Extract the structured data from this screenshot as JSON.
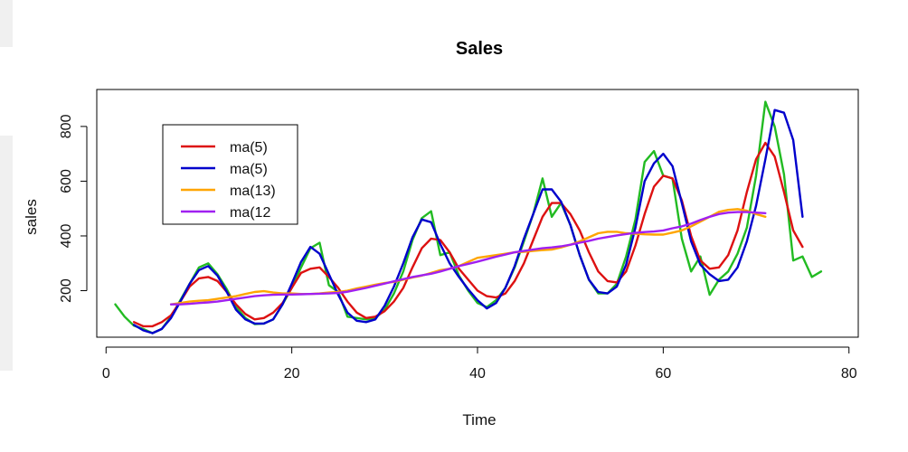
{
  "chart_data": {
    "type": "line",
    "title": "Sales",
    "xlabel": "Time",
    "ylabel": "sales",
    "xlim": [
      -1,
      81
    ],
    "ylim": [
      30,
      935
    ],
    "xticks": [
      0,
      20,
      40,
      60,
      80
    ],
    "yticks": [
      200,
      400,
      600,
      800
    ],
    "grid": false,
    "legend_position": "top-left",
    "series": [
      {
        "name": "",
        "color": "#22bb22",
        "in_legend": false,
        "x": [
          1,
          2,
          3,
          4,
          5,
          6,
          7,
          8,
          9,
          10,
          11,
          12,
          13,
          14,
          15,
          16,
          17,
          18,
          19,
          20,
          21,
          22,
          23,
          24,
          25,
          26,
          27,
          28,
          29,
          30,
          31,
          32,
          33,
          34,
          35,
          36,
          37,
          38,
          39,
          40,
          41,
          42,
          43,
          44,
          45,
          46,
          47,
          48,
          49,
          50,
          51,
          52,
          53,
          54,
          55,
          56,
          57,
          58,
          59,
          60,
          61,
          62,
          63,
          64,
          65,
          66,
          67,
          68,
          69,
          70,
          71,
          72,
          73,
          74,
          75,
          76,
          77
        ],
        "values": [
          150,
          105,
          72,
          60,
          45,
          60,
          105,
          165,
          225,
          285,
          300,
          260,
          205,
          140,
          100,
          78,
          80,
          95,
          150,
          210,
          285,
          355,
          375,
          220,
          195,
          105,
          100,
          95,
          100,
          130,
          190,
          270,
          385,
          465,
          490,
          330,
          340,
          255,
          200,
          155,
          140,
          165,
          210,
          285,
          380,
          480,
          610,
          470,
          520,
          440,
          330,
          240,
          190,
          190,
          225,
          325,
          460,
          670,
          710,
          620,
          610,
          390,
          270,
          325,
          185,
          240,
          270,
          335,
          430,
          620,
          890,
          800,
          625,
          310,
          325,
          250,
          270
        ]
      },
      {
        "name": "ma(5)",
        "color": "#dd1111",
        "in_legend": true,
        "x": [
          3,
          4,
          5,
          6,
          7,
          8,
          9,
          10,
          11,
          12,
          13,
          14,
          15,
          16,
          17,
          18,
          19,
          20,
          21,
          22,
          23,
          24,
          25,
          26,
          27,
          28,
          29,
          30,
          31,
          32,
          33,
          34,
          35,
          36,
          37,
          38,
          39,
          40,
          41,
          42,
          43,
          44,
          45,
          46,
          47,
          48,
          49,
          50,
          51,
          52,
          53,
          54,
          55,
          56,
          57,
          58,
          59,
          60,
          61,
          62,
          63,
          64,
          65,
          66,
          67,
          68,
          69,
          70,
          71,
          72,
          73,
          74,
          75
        ],
        "values": [
          85,
          70,
          70,
          85,
          110,
          160,
          215,
          245,
          250,
          235,
          195,
          150,
          115,
          95,
          100,
          120,
          155,
          210,
          265,
          280,
          285,
          250,
          210,
          160,
          120,
          100,
          105,
          125,
          160,
          210,
          285,
          355,
          390,
          385,
          340,
          280,
          240,
          200,
          180,
          175,
          190,
          235,
          300,
          385,
          470,
          520,
          520,
          480,
          420,
          340,
          270,
          235,
          230,
          270,
          365,
          480,
          580,
          620,
          610,
          530,
          400,
          310,
          280,
          285,
          330,
          420,
          560,
          680,
          740,
          690,
          560,
          420,
          360
        ]
      },
      {
        "name": "ma(5)",
        "color": "#0000cc",
        "in_legend": true,
        "x": [
          3,
          4,
          5,
          6,
          7,
          8,
          9,
          10,
          11,
          12,
          13,
          14,
          15,
          16,
          17,
          18,
          19,
          20,
          21,
          22,
          23,
          24,
          25,
          26,
          27,
          28,
          29,
          30,
          31,
          32,
          33,
          34,
          35,
          36,
          37,
          38,
          39,
          40,
          41,
          42,
          43,
          44,
          45,
          46,
          47,
          48,
          49,
          50,
          51,
          52,
          53,
          54,
          55,
          56,
          57,
          58,
          59,
          60,
          61,
          62,
          63,
          64,
          65,
          66,
          67,
          68,
          69,
          70,
          71,
          72,
          73,
          74,
          75
        ],
        "values": [
          75,
          55,
          45,
          60,
          100,
          160,
          225,
          275,
          290,
          255,
          195,
          130,
          95,
          80,
          80,
          95,
          150,
          225,
          305,
          360,
          335,
          260,
          185,
          120,
          90,
          85,
          95,
          145,
          215,
          300,
          395,
          460,
          450,
          370,
          300,
          250,
          205,
          165,
          135,
          155,
          210,
          290,
          390,
          480,
          570,
          570,
          525,
          440,
          330,
          240,
          195,
          190,
          215,
          295,
          430,
          600,
          665,
          700,
          655,
          520,
          380,
          295,
          260,
          235,
          240,
          285,
          380,
          510,
          680,
          860,
          850,
          750,
          470
        ]
      },
      {
        "name": "ma(13)",
        "color": "#ffa500",
        "in_legend": true,
        "x": [
          7,
          8,
          9,
          10,
          11,
          12,
          13,
          14,
          15,
          16,
          17,
          18,
          19,
          20,
          21,
          22,
          23,
          24,
          25,
          26,
          27,
          28,
          29,
          30,
          31,
          32,
          33,
          34,
          35,
          36,
          37,
          38,
          39,
          40,
          41,
          42,
          43,
          44,
          45,
          46,
          47,
          48,
          49,
          50,
          51,
          52,
          53,
          54,
          55,
          56,
          57,
          58,
          59,
          60,
          61,
          62,
          63,
          64,
          65,
          66,
          67,
          68,
          69,
          70,
          71
        ],
        "values": [
          150,
          155,
          160,
          163,
          165,
          170,
          175,
          180,
          188,
          195,
          198,
          193,
          190,
          190,
          188,
          188,
          190,
          193,
          195,
          200,
          208,
          215,
          222,
          228,
          232,
          240,
          248,
          255,
          265,
          275,
          280,
          290,
          305,
          320,
          325,
          330,
          335,
          340,
          342,
          345,
          348,
          350,
          358,
          368,
          380,
          395,
          410,
          415,
          415,
          410,
          408,
          406,
          405,
          405,
          412,
          420,
          435,
          452,
          470,
          488,
          495,
          498,
          492,
          480,
          470
        ]
      },
      {
        "name": "ma(12",
        "color": "#a020f0",
        "in_legend": true,
        "x": [
          7,
          8,
          9,
          10,
          11,
          12,
          13,
          14,
          15,
          16,
          17,
          18,
          19,
          20,
          21,
          22,
          23,
          24,
          25,
          26,
          27,
          28,
          29,
          30,
          31,
          32,
          33,
          34,
          35,
          36,
          37,
          38,
          39,
          40,
          41,
          42,
          43,
          44,
          45,
          46,
          47,
          48,
          49,
          50,
          51,
          52,
          53,
          54,
          55,
          56,
          57,
          58,
          59,
          60,
          61,
          62,
          63,
          64,
          65,
          66,
          67,
          68,
          69,
          70,
          71
        ],
        "values": [
          150,
          150,
          152,
          155,
          157,
          160,
          165,
          170,
          175,
          180,
          183,
          185,
          186,
          186,
          187,
          188,
          189,
          190,
          192,
          196,
          203,
          210,
          218,
          226,
          234,
          242,
          250,
          256,
          262,
          270,
          280,
          290,
          298,
          306,
          315,
          324,
          332,
          340,
          345,
          350,
          355,
          358,
          362,
          368,
          375,
          382,
          390,
          396,
          402,
          407,
          411,
          414,
          416,
          420,
          428,
          435,
          445,
          458,
          470,
          480,
          485,
          487,
          487,
          485,
          483
        ]
      }
    ]
  }
}
